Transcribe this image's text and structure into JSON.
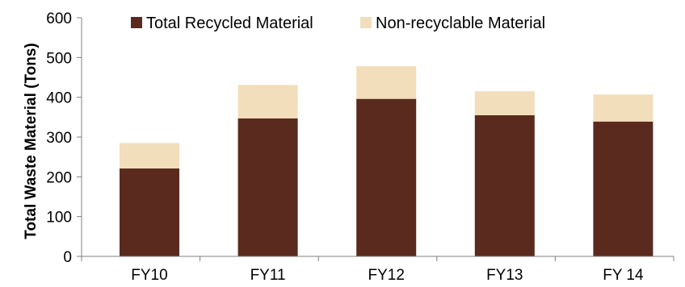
{
  "chart_data": {
    "type": "bar",
    "stacked": true,
    "title": "",
    "xlabel": "",
    "ylabel": "Total Waste Material (Tons)",
    "ylim": [
      0,
      600
    ],
    "yticks": [
      0,
      100,
      200,
      300,
      400,
      500,
      600
    ],
    "grid": false,
    "legend_position": "top",
    "categories": [
      "FY10",
      "FY11",
      "FY12",
      "FY13",
      "FY 14"
    ],
    "series": [
      {
        "name": "Total Recycled Material",
        "color": "#5a2a1e",
        "values": [
          221,
          347,
          396,
          355,
          339
        ]
      },
      {
        "name": "Non-recyclable Material",
        "color": "#f2deba",
        "values": [
          64,
          84,
          82,
          60,
          68
        ]
      }
    ]
  }
}
